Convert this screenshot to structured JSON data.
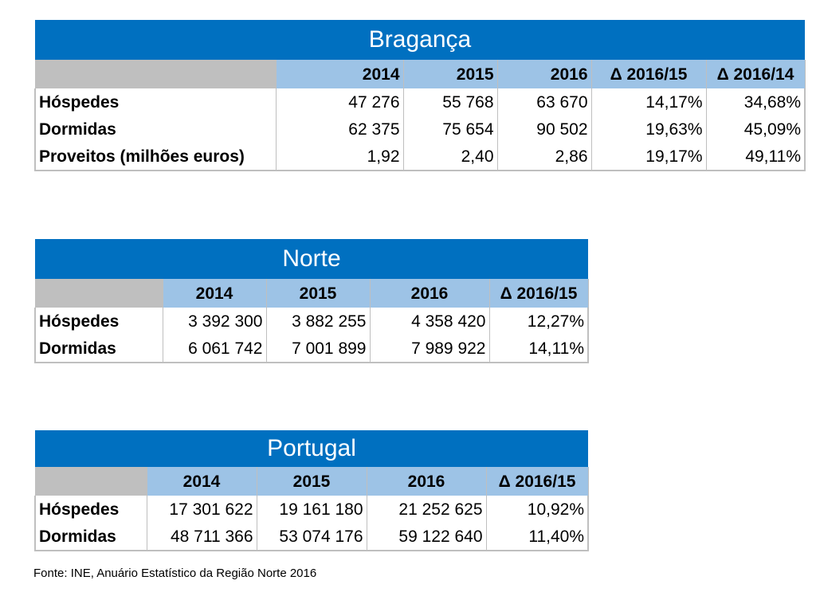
{
  "tables": [
    {
      "title": "Bragança",
      "headers": [
        "",
        "2014",
        "2015",
        "2016",
        "Δ 2016/15",
        "Δ 2016/14"
      ],
      "rows": [
        {
          "label": "Hóspedes",
          "values": [
            "47 276",
            "55 768",
            "63 670",
            "14,17%",
            "34,68%"
          ]
        },
        {
          "label": "Dormidas",
          "values": [
            "62 375",
            "75 654",
            "90 502",
            "19,63%",
            "45,09%"
          ]
        },
        {
          "label": "Proveitos (milhões euros)",
          "values": [
            "1,92",
            "2,40",
            "2,86",
            "19,17%",
            "49,11%"
          ]
        }
      ]
    },
    {
      "title": "Norte",
      "headers": [
        "",
        "2014",
        "2015",
        "2016",
        "Δ 2016/15"
      ],
      "rows": [
        {
          "label": "Hóspedes",
          "values": [
            "3 392 300",
            "3 882 255",
            "4 358 420",
            "12,27%"
          ]
        },
        {
          "label": "Dormidas",
          "values": [
            "6 061 742",
            "7 001 899",
            "7 989 922",
            "14,11%"
          ]
        }
      ]
    },
    {
      "title": "Portugal",
      "headers": [
        "",
        "2014",
        "2015",
        "2016",
        "Δ 2016/15"
      ],
      "rows": [
        {
          "label": "Hóspedes",
          "values": [
            "17 301 622",
            "19 161 180",
            "21 252 625",
            "10,92%"
          ]
        },
        {
          "label": "Dormidas",
          "values": [
            "48 711 366",
            "53 074 176",
            "59 122 640",
            "11,40%"
          ]
        }
      ]
    }
  ],
  "source": "Fonte: INE, Anuário Estatístico da Região Norte 2016",
  "colors": {
    "title_bg": "#0070c0",
    "header_bg": "#9dc3e6",
    "corner_bg": "#bfbfbf"
  }
}
